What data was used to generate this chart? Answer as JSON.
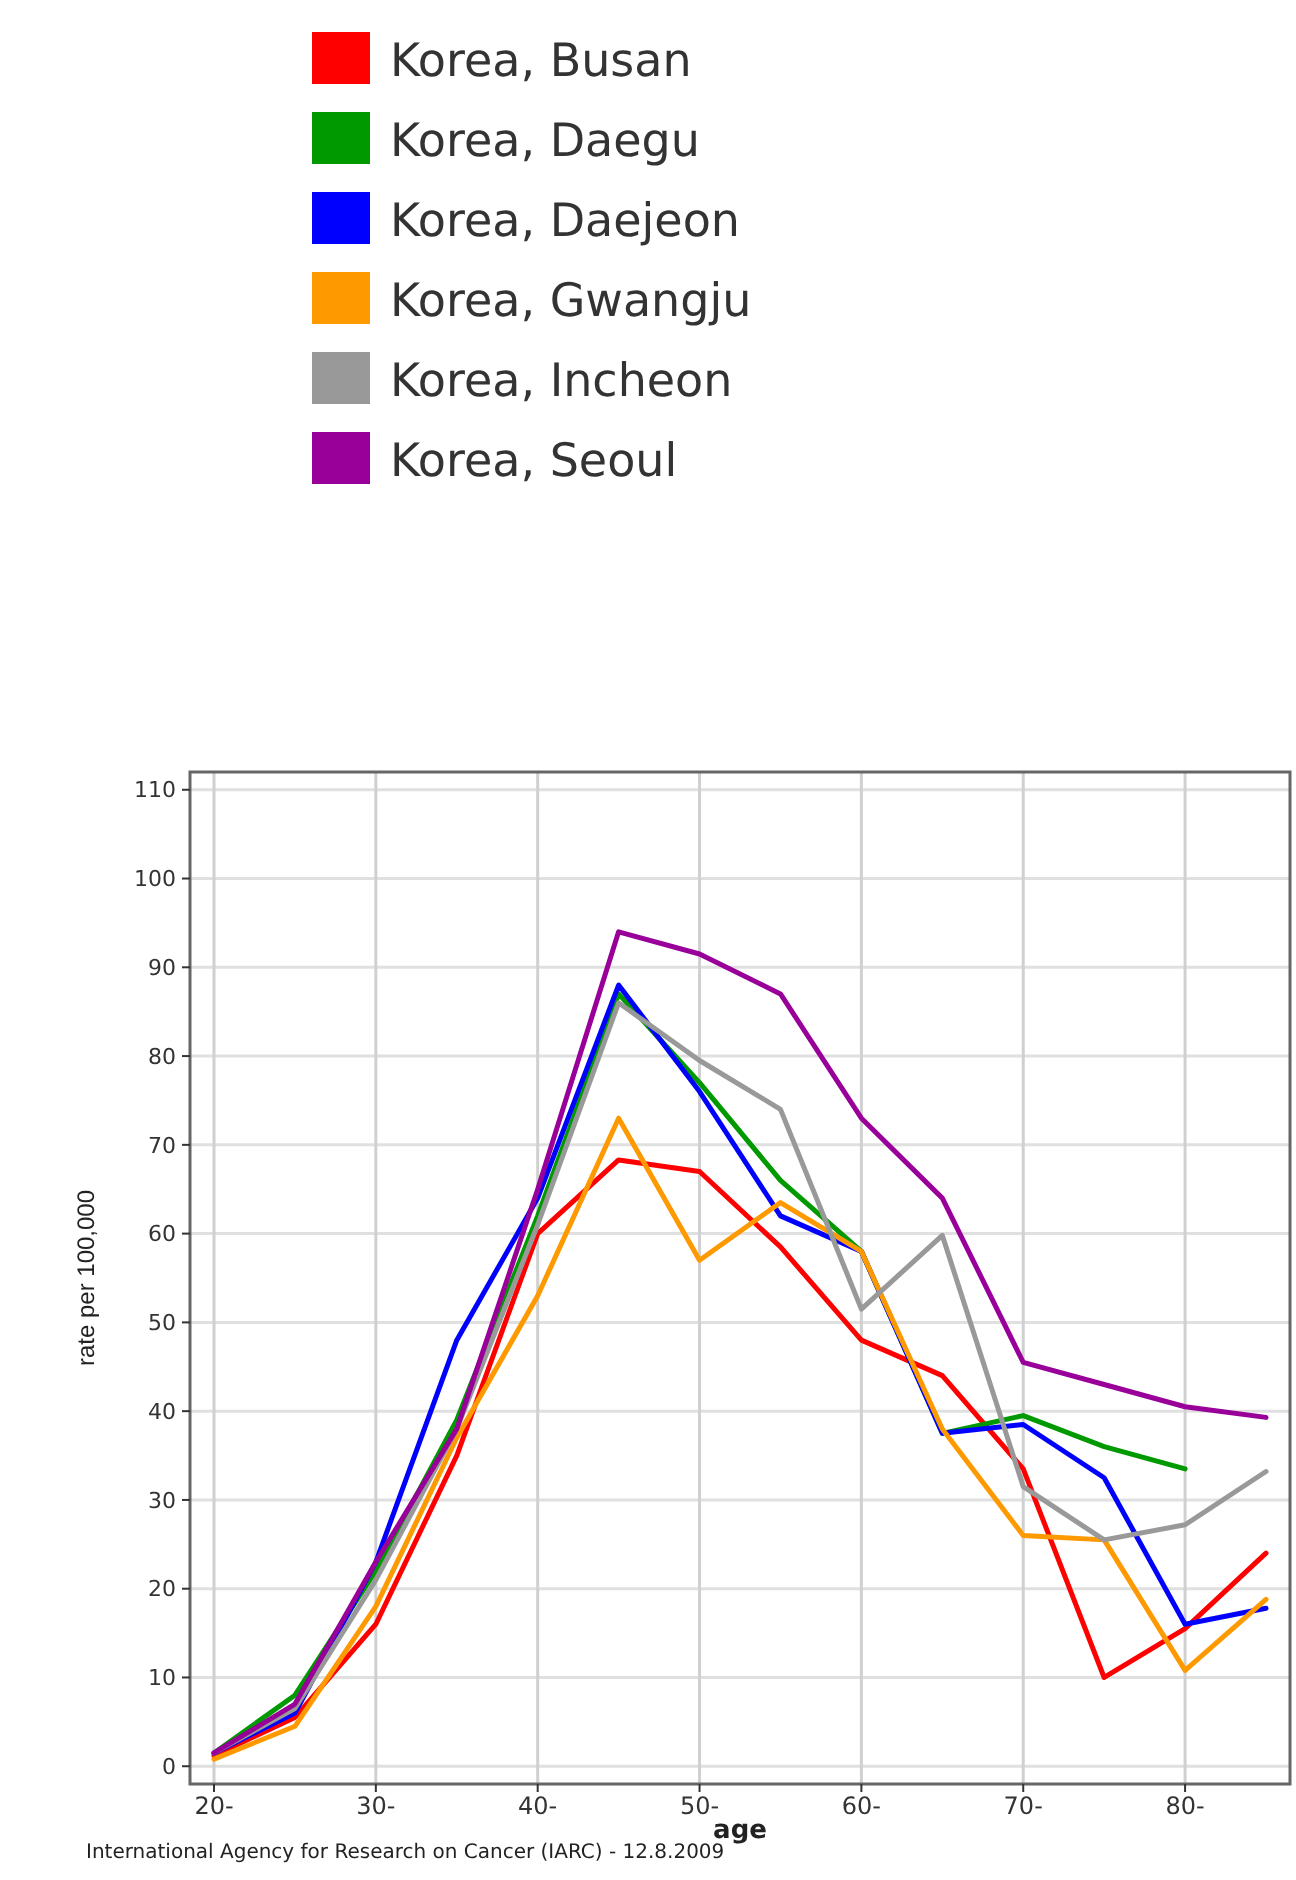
{
  "chart_data": {
    "type": "line",
    "xlabel": "age",
    "ylabel": "rate per 100,000",
    "categories": [
      "20-",
      null,
      "30-",
      null,
      "40-",
      null,
      "50-",
      null,
      "60-",
      null,
      "70-",
      null,
      "80-",
      null
    ],
    "ylim": [
      -2,
      112
    ],
    "yticks": [
      0,
      10,
      20,
      30,
      40,
      50,
      60,
      70,
      80,
      90,
      100,
      110
    ],
    "grid": true,
    "legend": "top",
    "marker": "none",
    "line_style": "solid",
    "annotations": [
      "International Agency for Research on Cancer (IARC) - 12.8.2009"
    ],
    "series": [
      {
        "name": "Korea, Busan",
        "color": "#ff0000",
        "values": [
          1.2,
          5.5,
          16,
          35,
          60,
          68.3,
          67,
          58.5,
          48,
          44,
          33.5,
          10,
          15.5,
          24
        ]
      },
      {
        "name": "Korea, Daegu",
        "color": "#009900",
        "values": [
          1.5,
          8,
          22,
          39,
          62,
          87,
          77,
          66,
          58,
          37.5,
          39.5,
          36,
          33.5,
          null
        ]
      },
      {
        "name": "Korea, Daejeon",
        "color": "#0000ff",
        "values": [
          1.5,
          6,
          23,
          48,
          64,
          88,
          76,
          62,
          58,
          37.5,
          38.5,
          32.5,
          16,
          17.8
        ]
      },
      {
        "name": "Korea, Gwangju",
        "color": "#ff9900",
        "values": [
          0.8,
          4.5,
          18,
          37,
          53,
          73,
          57,
          63.5,
          58,
          38,
          26,
          25.5,
          10.8,
          18.8
        ]
      },
      {
        "name": "Korea, Incheon",
        "color": "#999999",
        "values": [
          1.5,
          6.5,
          21,
          38,
          61,
          86,
          79.5,
          74,
          51.5,
          59.8,
          31.5,
          25.5,
          27.2,
          33.2
        ]
      },
      {
        "name": "Korea, Seoul",
        "color": "#990099",
        "values": [
          1.5,
          7,
          23,
          38,
          65,
          94,
          91.5,
          87,
          73,
          64,
          45.5,
          43,
          40.5,
          39.3
        ]
      }
    ]
  }
}
